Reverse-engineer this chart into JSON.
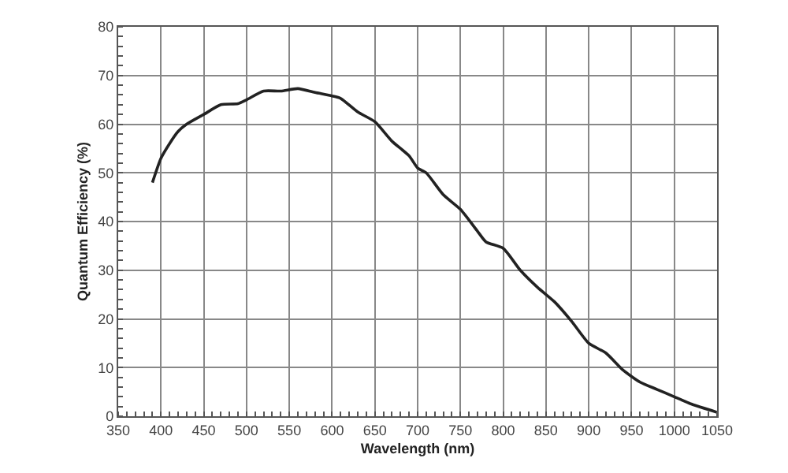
{
  "chart_data": {
    "type": "line",
    "xlabel": "Wavelength (nm)",
    "ylabel": "Quantum Efficiency (%)",
    "x": [
      390,
      400,
      410,
      420,
      430,
      450,
      470,
      490,
      500,
      520,
      540,
      560,
      580,
      600,
      610,
      630,
      650,
      670,
      690,
      700,
      710,
      730,
      750,
      770,
      780,
      800,
      820,
      840,
      860,
      880,
      900,
      920,
      940,
      960,
      980,
      1000,
      1020,
      1050
    ],
    "series": [
      {
        "color": "#222222",
        "values": [
          48,
          53,
          56,
          58.5,
          60,
          62,
          64,
          64.2,
          65,
          66.8,
          66.8,
          67.3,
          66.5,
          65.8,
          65.3,
          62.5,
          60.5,
          56.5,
          53.5,
          51,
          50,
          45.5,
          42.5,
          38,
          35.8,
          34.5,
          30,
          26.5,
          23.5,
          19.5,
          15,
          13,
          9.5,
          7,
          5.5,
          4,
          2.5,
          0.8
        ]
      }
    ],
    "xlim": [
      350,
      1050
    ],
    "xticks": [
      350,
      400,
      450,
      500,
      550,
      600,
      650,
      700,
      750,
      800,
      850,
      900,
      950,
      1000,
      1050
    ],
    "ylim": [
      0,
      80
    ],
    "yticks": [
      0,
      10,
      20,
      30,
      40,
      50,
      60,
      70,
      80
    ],
    "grid": true,
    "legend": false,
    "marker": "none",
    "line_style": "solid"
  }
}
